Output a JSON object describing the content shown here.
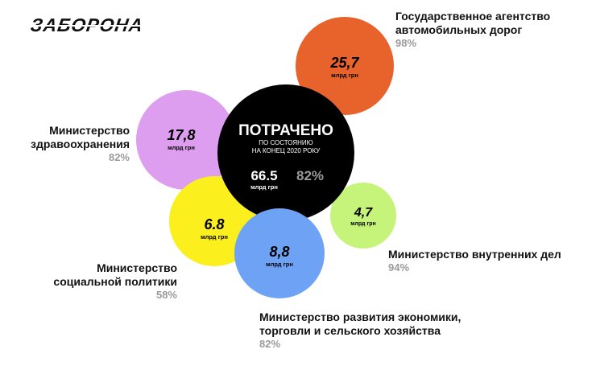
{
  "brand": {
    "logo_text": "ЗАБОРОНА"
  },
  "colors": {
    "black": "#000000",
    "orange": "#e8622b",
    "violet": "#dd9ef0",
    "yellow": "#fbef1e",
    "blue": "#6ea2f5",
    "green": "#c6f47a",
    "muted": "#9a9a9a"
  },
  "chart_data": {
    "type": "bubble",
    "center": {
      "title": "ПОТРАЧЕНО",
      "subtitle_line1": "ПО СОСТОЯНИЮ",
      "subtitle_line2": "НА КОНЕЦ 2020 РОКУ",
      "value": "66.5",
      "unit": "млрд грн",
      "percent": "82%"
    },
    "bubbles": [
      {
        "label_lines": [
          "Государственное агентство",
          "автомобильных дорог"
        ],
        "value": "25,7",
        "unit": "млрд грн",
        "percent": "98%",
        "color": "#e8622b"
      },
      {
        "label_lines": [
          "Министерство",
          "здравоохранения"
        ],
        "value": "17,8",
        "unit": "млрд грн",
        "percent": "82%",
        "color": "#dd9ef0"
      },
      {
        "label_lines": [
          "Министерство",
          "социальной политики"
        ],
        "value": "6.8",
        "unit": "млрд грн",
        "percent": "58%",
        "color": "#fbef1e"
      },
      {
        "label_lines": [
          "Министерство развития экономики,",
          "торговли и сельского хозяйства"
        ],
        "value": "8,8",
        "unit": "млрд грн",
        "percent": "82%",
        "color": "#6ea2f5"
      },
      {
        "label_lines": [
          "Министерство внутренних дел"
        ],
        "value": "4,7",
        "unit": "млрд грн",
        "percent": "94%",
        "color": "#c6f47a"
      }
    ]
  }
}
